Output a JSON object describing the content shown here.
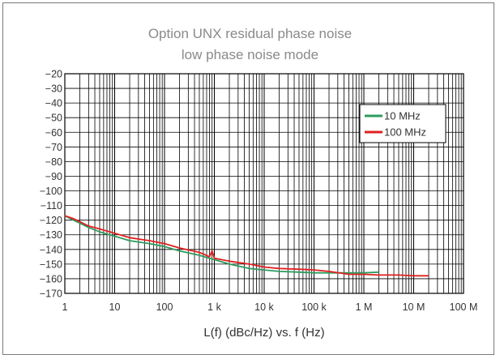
{
  "chart_data": {
    "type": "line",
    "title_lines": [
      "Option UNX residual phase noise",
      "low phase noise mode"
    ],
    "xlabel": "L(f) (dBc/Hz) vs. f (Hz)",
    "ylabel": "",
    "x_scale": "log",
    "xlim": [
      1,
      100000000
    ],
    "ylim": [
      -170,
      -20
    ],
    "x_ticks": [
      {
        "value": 1,
        "label": "1"
      },
      {
        "value": 10,
        "label": "10"
      },
      {
        "value": 100,
        "label": "100"
      },
      {
        "value": 1000,
        "label": "1 k"
      },
      {
        "value": 10000,
        "label": "10 k"
      },
      {
        "value": 100000,
        "label": "100 k"
      },
      {
        "value": 1000000,
        "label": "1 M"
      },
      {
        "value": 10000000,
        "label": "10 M"
      },
      {
        "value": 100000000,
        "label": "100 M"
      }
    ],
    "y_ticks": [
      -20,
      -30,
      -40,
      -50,
      -60,
      -70,
      -80,
      -90,
      -100,
      -110,
      -120,
      -130,
      -140,
      -150,
      -160,
      -170
    ],
    "grid": true,
    "legend_position": "top-right",
    "series": [
      {
        "name": "10 MHz",
        "color": "#2e9b5e",
        "points": [
          [
            1,
            -117
          ],
          [
            1.5,
            -120
          ],
          [
            2,
            -122
          ],
          [
            3,
            -125
          ],
          [
            5,
            -128
          ],
          [
            10,
            -131
          ],
          [
            20,
            -134
          ],
          [
            50,
            -136
          ],
          [
            100,
            -138
          ],
          [
            200,
            -141
          ],
          [
            500,
            -144
          ],
          [
            1000,
            -147
          ],
          [
            2000,
            -150
          ],
          [
            5000,
            -153
          ],
          [
            10000,
            -154
          ],
          [
            20000,
            -155
          ],
          [
            50000,
            -155.5
          ],
          [
            100000,
            -156
          ],
          [
            300000,
            -156
          ],
          [
            1000000,
            -156
          ],
          [
            2000000,
            -155.5
          ]
        ]
      },
      {
        "name": "100 MHz",
        "color": "#e02020",
        "points": [
          [
            1,
            -117
          ],
          [
            1.5,
            -119
          ],
          [
            2,
            -121
          ],
          [
            3,
            -124
          ],
          [
            5,
            -126
          ],
          [
            10,
            -129
          ],
          [
            20,
            -132
          ],
          [
            50,
            -134
          ],
          [
            100,
            -136
          ],
          [
            200,
            -139
          ],
          [
            500,
            -142
          ],
          [
            800,
            -145
          ],
          [
            900,
            -141
          ],
          [
            1000,
            -146
          ],
          [
            2000,
            -148
          ],
          [
            5000,
            -150
          ],
          [
            10000,
            -152
          ],
          [
            20000,
            -153
          ],
          [
            50000,
            -153.5
          ],
          [
            100000,
            -154
          ],
          [
            200000,
            -155
          ],
          [
            500000,
            -157
          ],
          [
            1000000,
            -157
          ],
          [
            2000000,
            -157.5
          ],
          [
            5000000,
            -157.5
          ],
          [
            10000000,
            -158
          ],
          [
            20000000,
            -158
          ]
        ]
      }
    ]
  }
}
